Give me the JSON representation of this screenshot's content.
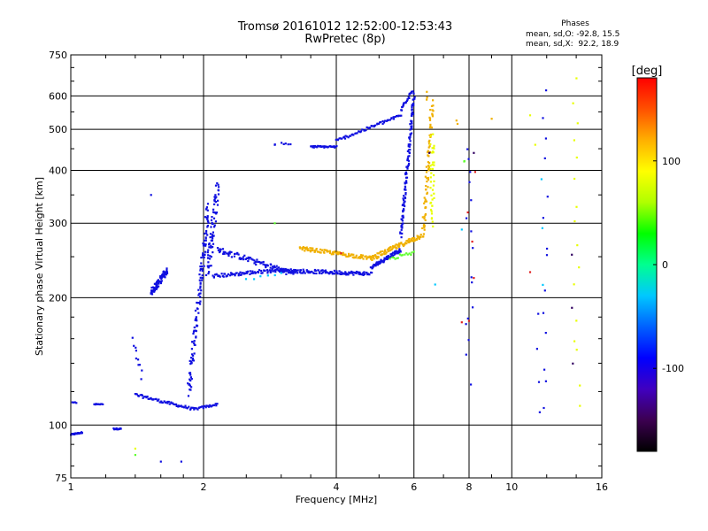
{
  "chart_data": {
    "type": "scatter",
    "title": "Tromsø 20161012 12:52:00-12:53:43",
    "subtitle": "RwPretec (8p)",
    "xlabel": "Frequency [MHz]",
    "ylabel": "Stationary phase Virtual Height [km]",
    "x_scale": "log",
    "y_scale": "log",
    "xlim": [
      1,
      16
    ],
    "ylim": [
      75,
      750
    ],
    "x_ticks": [
      1,
      2,
      4,
      6,
      8,
      10,
      16
    ],
    "y_ticks": [
      75,
      100,
      200,
      300,
      400,
      500,
      600,
      750
    ],
    "grid": true,
    "stats": {
      "heading": "Phases",
      "o_line": "mean, sd,O: -92.8, 15.5",
      "x_line": "mean, sd,X:  92.2, 18.9"
    },
    "colorbar": {
      "label": "[deg]",
      "range": [
        -180,
        180
      ],
      "ticks": [
        100,
        0,
        -100
      ],
      "colormap": [
        "#000000",
        "#3c0050",
        "#4000c0",
        "#0000ff",
        "#0060ff",
        "#00c8ff",
        "#00ff90",
        "#00ff00",
        "#b0ff00",
        "#ffff00",
        "#ffb000",
        "#ff5000",
        "#ff0000"
      ]
    },
    "series": [
      {
        "color": "#1010e0",
        "segments": [
          {
            "x": [
              1.0,
              1.06
            ],
            "y": [
              95,
              96
            ],
            "n": 22,
            "jit": 0.008
          },
          {
            "x": [
              1.25,
              1.3
            ],
            "y": [
              98,
              98
            ],
            "n": 16,
            "jit": 0.006
          },
          {
            "x": [
              1.13,
              1.18
            ],
            "y": [
              112,
              112
            ],
            "n": 10,
            "jit": 0.006
          },
          {
            "x": [
              1.0,
              1.03
            ],
            "y": [
              113,
              113
            ],
            "n": 5,
            "jit": 0.006
          },
          {
            "x": [
              1.4,
              1.9
            ],
            "y": [
              118,
              109
            ],
            "n": 60,
            "jit": 0.015
          },
          {
            "x": [
              1.9,
              2.15
            ],
            "y": [
              109,
              112
            ],
            "n": 25,
            "jit": 0.012
          },
          {
            "x": [
              1.38,
              1.45
            ],
            "y": [
              160,
              130
            ],
            "n": 10,
            "jit": 0.04
          },
          {
            "x": [
              1.52,
              1.65
            ],
            "y": [
              205,
              232
            ],
            "n": 90,
            "jit": 0.035
          },
          {
            "x": [
              1.85,
              2.05
            ],
            "y": [
              120,
              330
            ],
            "n": 120,
            "jit": 0.05
          },
          {
            "x": [
              2.05,
              2.15
            ],
            "y": [
              230,
              370
            ],
            "n": 70,
            "jit": 0.06
          },
          {
            "x": [
              2.15,
              3.2
            ],
            "y": [
              260,
              228
            ],
            "n": 90,
            "jit": 0.03
          },
          {
            "x": [
              2.1,
              3.0
            ],
            "y": [
              225,
              233
            ],
            "n": 80,
            "jit": 0.02
          },
          {
            "x": [
              3.0,
              4.8
            ],
            "y": [
              232,
              228
            ],
            "n": 120,
            "jit": 0.02
          },
          {
            "x": [
              4.8,
              5.6
            ],
            "y": [
              236,
              260
            ],
            "n": 70,
            "jit": 0.02
          },
          {
            "x": [
              5.6,
              6.0
            ],
            "y": [
              280,
              600
            ],
            "n": 110,
            "jit": 0.03
          },
          {
            "x": [
              3.5,
              4.0
            ],
            "y": [
              455,
              455
            ],
            "n": 30,
            "jit": 0.01
          },
          {
            "x": [
              4.0,
              5.6
            ],
            "y": [
              470,
              540
            ],
            "n": 60,
            "jit": 0.015
          },
          {
            "x": [
              5.6,
              5.95
            ],
            "y": [
              555,
              620
            ],
            "n": 22,
            "jit": 0.02
          },
          {
            "x": [
              3.0,
              3.15
            ],
            "y": [
              465,
              460
            ],
            "n": 5,
            "jit": 0.01
          },
          {
            "x": [
              2.9,
              2.9
            ],
            "y": [
              460,
              460
            ],
            "n": 2,
            "jit": 0.005
          },
          {
            "x": [
              8.0,
              8.0
            ],
            "y": [
              130,
              460
            ],
            "n": 16,
            "jit": 0.1
          },
          {
            "x": [
              12.0,
              12.0
            ],
            "y": [
              108,
              610
            ],
            "n": 14,
            "jit": 0.1
          },
          {
            "x": [
              11.5,
              11.5
            ],
            "y": [
              105,
              180
            ],
            "n": 4,
            "jit": 0.05
          },
          {
            "x": [
              1.52,
              1.52
            ],
            "y": [
              350,
              350
            ],
            "n": 1,
            "jit": 0
          },
          {
            "x": [
              1.6,
              1.6
            ],
            "y": [
              82,
              82
            ],
            "n": 1,
            "jit": 0
          },
          {
            "x": [
              1.78,
              1.78
            ],
            "y": [
              82,
              82
            ],
            "n": 1,
            "jit": 0
          }
        ]
      },
      {
        "color": "#f0b000",
        "segments": [
          {
            "x": [
              3.3,
              4.8
            ],
            "y": [
              262,
              248
            ],
            "n": 100,
            "jit": 0.02
          },
          {
            "x": [
              4.8,
              6.3
            ],
            "y": [
              248,
              282
            ],
            "n": 100,
            "jit": 0.025
          },
          {
            "x": [
              6.3,
              6.6
            ],
            "y": [
              285,
              580
            ],
            "n": 70,
            "jit": 0.04
          },
          {
            "x": [
              6.4,
              6.4
            ],
            "y": [
              590,
              610
            ],
            "n": 3,
            "jit": 0.02
          },
          {
            "x": [
              7.5,
              7.5
            ],
            "y": [
              520,
              520
            ],
            "n": 2,
            "jit": 0.02
          },
          {
            "x": [
              9.0,
              9.0
            ],
            "y": [
              530,
              530
            ],
            "n": 1,
            "jit": 0
          }
        ]
      },
      {
        "color": "#e8ff00",
        "segments": [
          {
            "x": [
              6.6,
              6.6
            ],
            "y": [
              300,
              480
            ],
            "n": 40,
            "jit": 0.05
          },
          {
            "x": [
              14.0,
              14.0
            ],
            "y": [
              115,
              650
            ],
            "n": 16,
            "jit": 0.1
          },
          {
            "x": [
              11.0,
              11.0
            ],
            "y": [
              540,
              540
            ],
            "n": 1,
            "jit": 0
          },
          {
            "x": [
              11.3,
              11.3
            ],
            "y": [
              460,
              460
            ],
            "n": 1,
            "jit": 0
          },
          {
            "x": [
              1.4,
              1.4
            ],
            "y": [
              88,
              88
            ],
            "n": 1,
            "jit": 0
          }
        ]
      },
      {
        "color": "#60ff30",
        "segments": [
          {
            "x": [
              5.3,
              6.0
            ],
            "y": [
              248,
              255
            ],
            "n": 16,
            "jit": 0.02
          },
          {
            "x": [
              2.9,
              2.9
            ],
            "y": [
              300,
              300
            ],
            "n": 1,
            "jit": 0
          },
          {
            "x": [
              7.8,
              7.8
            ],
            "y": [
              420,
              420
            ],
            "n": 2,
            "jit": 0.02
          },
          {
            "x": [
              1.4,
              1.4
            ],
            "y": [
              85,
              85
            ],
            "n": 1,
            "jit": 0
          }
        ]
      },
      {
        "color": "#e02020",
        "segments": [
          {
            "x": [
              8.1,
              8.1
            ],
            "y": [
              175,
              410
            ],
            "n": 5,
            "jit": 0.1
          },
          {
            "x": [
              7.7,
              7.7
            ],
            "y": [
              175,
              175
            ],
            "n": 1,
            "jit": 0
          },
          {
            "x": [
              4.1,
              4.1
            ],
            "y": [
              255,
              255
            ],
            "n": 1,
            "jit": 0
          },
          {
            "x": [
              11.0,
              11.0
            ],
            "y": [
              230,
              230
            ],
            "n": 1,
            "jit": 0
          }
        ]
      },
      {
        "color": "#00c8ff",
        "segments": [
          {
            "x": [
              2.5,
              3.0
            ],
            "y": [
              222,
              230
            ],
            "n": 6,
            "jit": 0.02
          },
          {
            "x": [
              7.7,
              7.7
            ],
            "y": [
              290,
              290
            ],
            "n": 1,
            "jit": 0
          },
          {
            "x": [
              6.7,
              6.7
            ],
            "y": [
              215,
              215
            ],
            "n": 1,
            "jit": 0
          },
          {
            "x": [
              11.7,
              11.7
            ],
            "y": [
              220,
              380
            ],
            "n": 3,
            "jit": 0.05
          }
        ]
      },
      {
        "color": "#300060",
        "segments": [
          {
            "x": [
              8.2,
              8.2
            ],
            "y": [
              440,
              440
            ],
            "n": 1,
            "jit": 0
          },
          {
            "x": [
              13.8,
              13.8
            ],
            "y": [
              140,
              250
            ],
            "n": 3,
            "jit": 0.05
          },
          {
            "x": [
              6.5,
              6.5
            ],
            "y": [
              440,
              440
            ],
            "n": 1,
            "jit": 0
          }
        ]
      }
    ]
  }
}
